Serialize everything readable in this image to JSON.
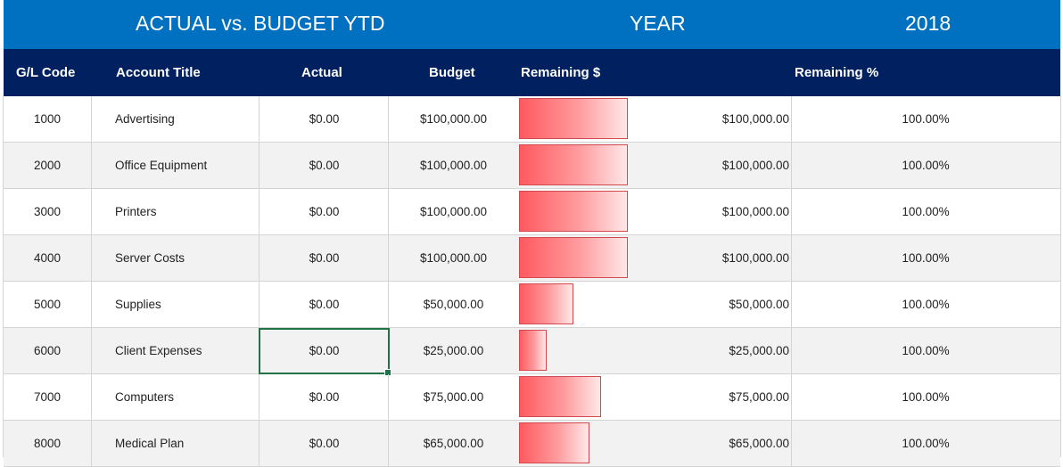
{
  "title_bar": {
    "title": "ACTUAL vs. BUDGET YTD",
    "year_label": "YEAR",
    "year_value": "2018"
  },
  "headers": {
    "gl_code": "G/L Code",
    "account_title": "Account Title",
    "actual": "Actual",
    "budget": "Budget",
    "remaining_amount": "Remaining $",
    "remaining_pct": "Remaining %"
  },
  "colors": {
    "title_bar": "#0071c1",
    "header_bar": "#002060",
    "data_bar": "#ff5a5f",
    "selection": "#217346"
  },
  "bar_max_value": 100000,
  "rows": [
    {
      "code": "1000",
      "title": "Advertising",
      "actual": "$0.00",
      "budget": "$100,000.00",
      "remaining": "$100,000.00",
      "remaining_value": 100000,
      "pct": "100.00%"
    },
    {
      "code": "2000",
      "title": "Office Equipment",
      "actual": "$0.00",
      "budget": "$100,000.00",
      "remaining": "$100,000.00",
      "remaining_value": 100000,
      "pct": "100.00%"
    },
    {
      "code": "3000",
      "title": "Printers",
      "actual": "$0.00",
      "budget": "$100,000.00",
      "remaining": "$100,000.00",
      "remaining_value": 100000,
      "pct": "100.00%"
    },
    {
      "code": "4000",
      "title": "Server Costs",
      "actual": "$0.00",
      "budget": "$100,000.00",
      "remaining": "$100,000.00",
      "remaining_value": 100000,
      "pct": "100.00%"
    },
    {
      "code": "5000",
      "title": "Supplies",
      "actual": "$0.00",
      "budget": "$50,000.00",
      "remaining": "$50,000.00",
      "remaining_value": 50000,
      "pct": "100.00%"
    },
    {
      "code": "6000",
      "title": "Client Expenses",
      "actual": "$0.00",
      "budget": "$25,000.00",
      "remaining": "$25,000.00",
      "remaining_value": 25000,
      "pct": "100.00%"
    },
    {
      "code": "7000",
      "title": "Computers",
      "actual": "$0.00",
      "budget": "$75,000.00",
      "remaining": "$75,000.00",
      "remaining_value": 75000,
      "pct": "100.00%"
    },
    {
      "code": "8000",
      "title": "Medical Plan",
      "actual": "$0.00",
      "budget": "$65,000.00",
      "remaining": "$65,000.00",
      "remaining_value": 65000,
      "pct": "100.00%"
    }
  ],
  "selected_row": 5
}
